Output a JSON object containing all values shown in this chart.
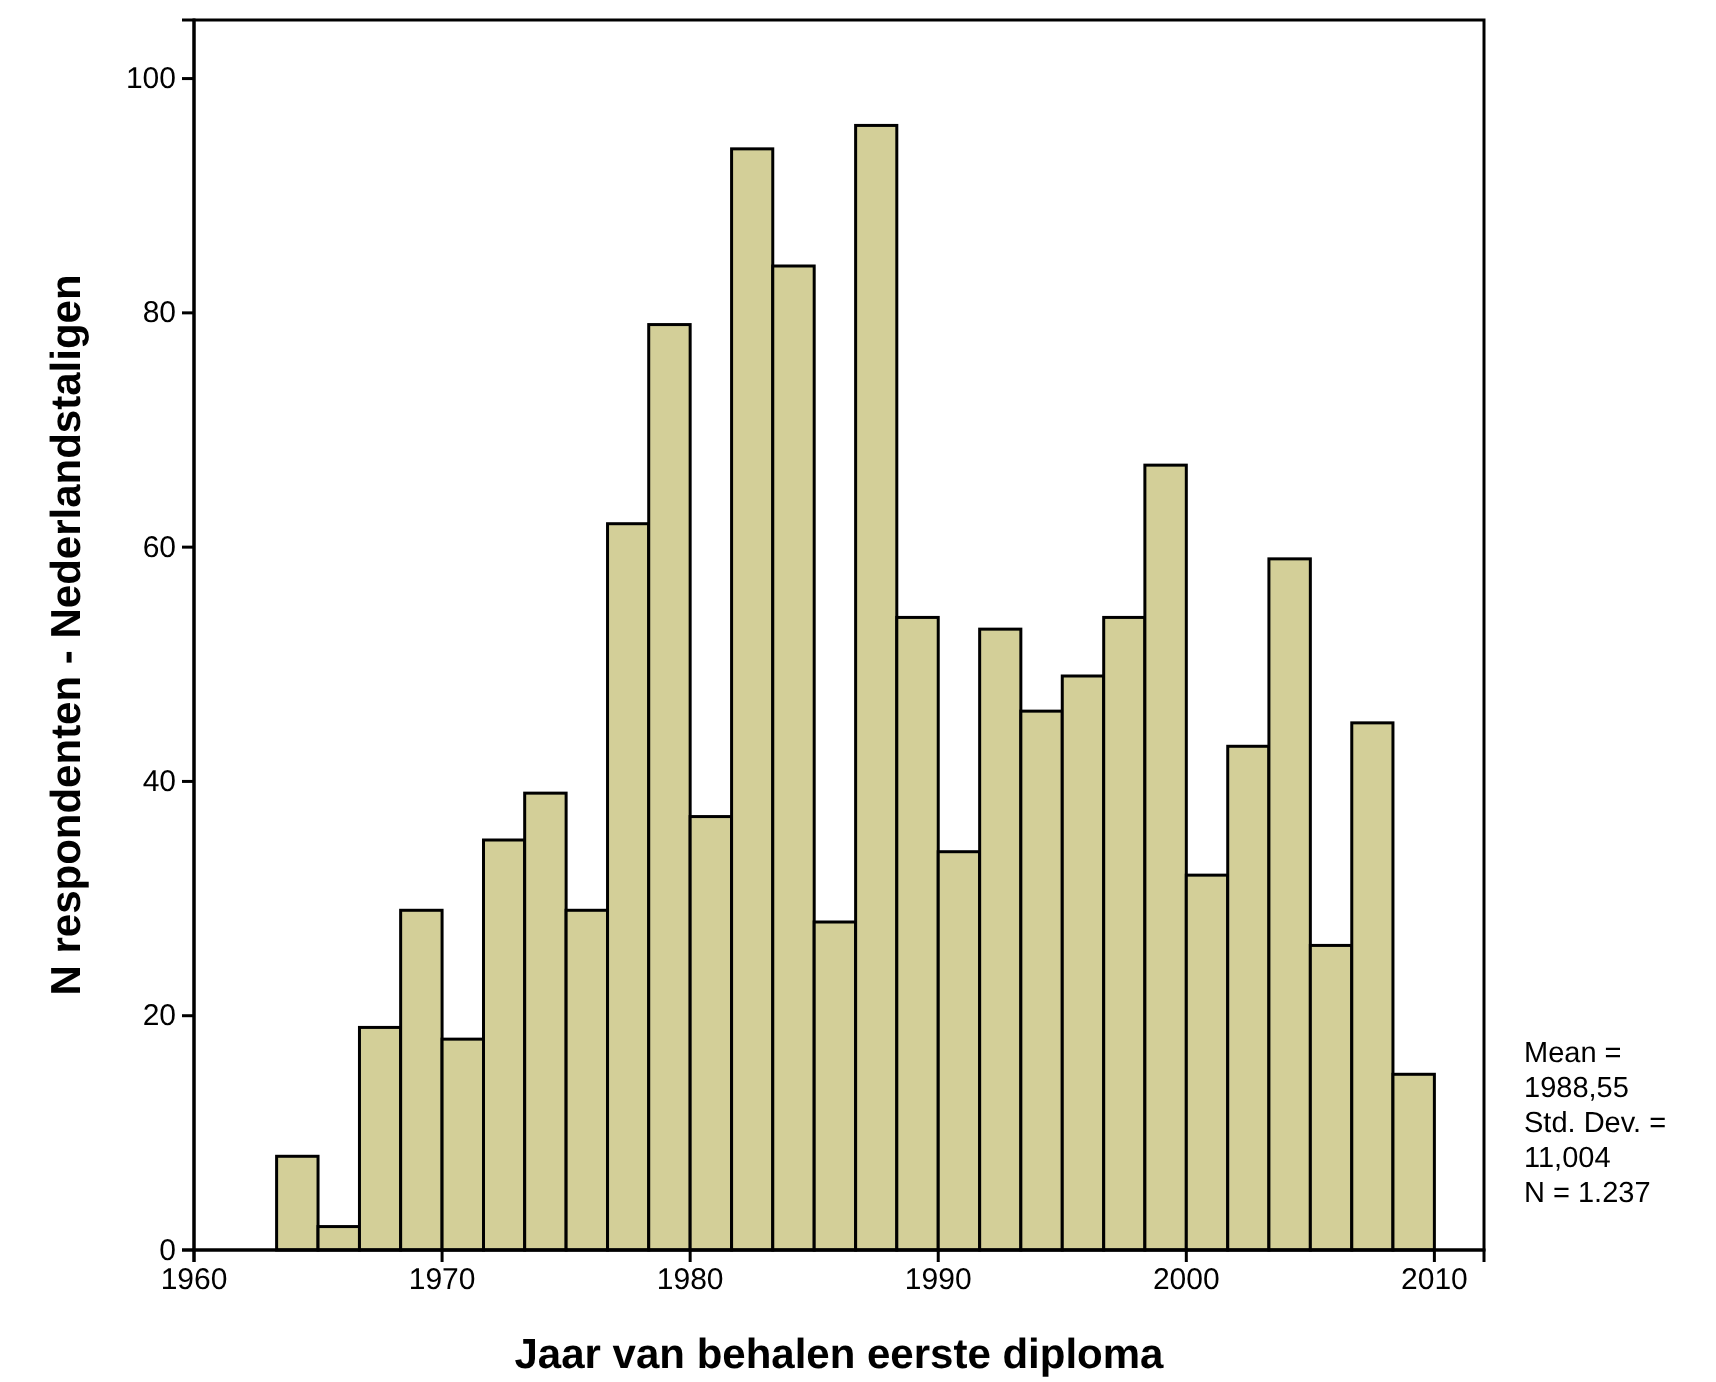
{
  "chart_data": {
    "type": "histogram",
    "xlabel": "Jaar van behalen eerste diploma",
    "ylabel": "N respondenten - Nederlandstaligen",
    "bins": [
      1963.33,
      1965,
      1966.67,
      1968.33,
      1970,
      1971.67,
      1973.33,
      1975,
      1976.67,
      1978.33,
      1980,
      1981.67,
      1983.33,
      1985,
      1986.67,
      1988.33,
      1990,
      1991.67,
      1993.33,
      1995,
      1996.67,
      1998.33,
      2000,
      2001.67,
      2003.33,
      2005,
      2006.67,
      2008.33,
      2010
    ],
    "values": [
      8,
      2,
      19,
      29,
      18,
      35,
      39,
      29,
      62,
      79,
      37,
      94,
      84,
      28,
      96,
      54,
      34,
      53,
      46,
      49,
      54,
      67,
      32,
      43,
      59,
      26,
      45,
      15
    ],
    "color": "#d3cf98",
    "xlim": [
      1960,
      2012
    ],
    "xticks": [
      1960,
      1970,
      1980,
      1990,
      2000,
      2010
    ],
    "ylim": [
      0,
      105
    ],
    "yticks": [
      0,
      20,
      40,
      60,
      80,
      100
    ],
    "annotations": [
      "Mean =\n1988,55\nStd. Dev. =\n11,004\nN = 1.237"
    ]
  }
}
